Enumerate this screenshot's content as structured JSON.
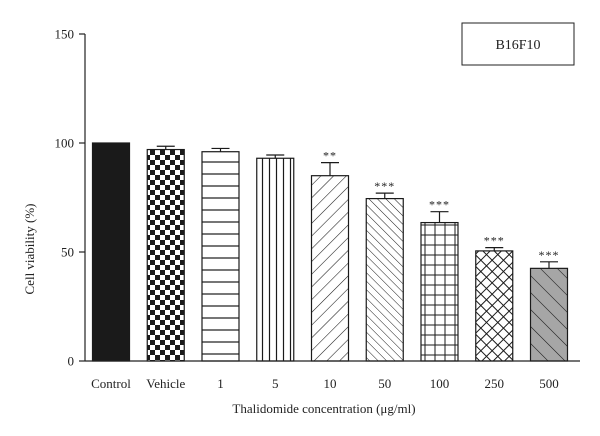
{
  "chart_data": {
    "type": "bar",
    "title": "",
    "legend_label": "B16F10",
    "legend_position": "top-right",
    "xlabel": "Thalidomide concentration (μg/ml)",
    "ylabel": "Cell viability (%)",
    "ylim": [
      0,
      150
    ],
    "yticks": [
      0,
      50,
      100,
      150
    ],
    "grid": false,
    "categories": [
      "Control",
      "Vehicle",
      "1",
      "5",
      "10",
      "50",
      "100",
      "250",
      "500"
    ],
    "values": [
      100,
      97,
      96,
      93,
      85,
      74.5,
      63.5,
      50.5,
      42.5
    ],
    "errors": [
      0,
      1.5,
      1.5,
      1.5,
      6,
      2.5,
      5,
      1.5,
      3
    ],
    "significance": [
      "",
      "",
      "",
      "",
      "**",
      "***",
      "***",
      "***",
      "***"
    ],
    "patterns": [
      "solid-black",
      "checkerboard",
      "horizontal-lines",
      "vertical-lines",
      "diagonal-right",
      "diagonal-right-dense",
      "grid",
      "diagonal-crosshatch",
      "diagonal-gray"
    ],
    "colors": {
      "bar_fill": "#ffffff",
      "bar_stroke": "#1a1a1a",
      "solid": "#1a1a1a",
      "gray": "#a6a6a6",
      "axis": "#222222"
    }
  }
}
